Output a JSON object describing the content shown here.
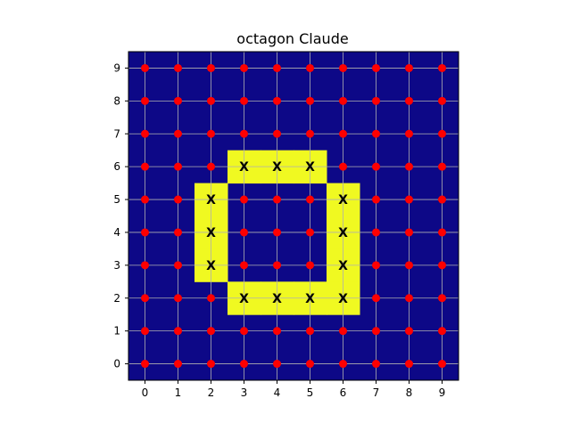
{
  "chart_data": {
    "type": "heatmap",
    "title": "octagon Claude",
    "xlabel": "",
    "ylabel": "",
    "x_ticks": [
      0,
      1,
      2,
      3,
      4,
      5,
      6,
      7,
      8,
      9
    ],
    "y_ticks": [
      0,
      1,
      2,
      3,
      4,
      5,
      6,
      7,
      8,
      9
    ],
    "xlim": [
      -0.5,
      9.5
    ],
    "ylim": [
      -0.5,
      9.5
    ],
    "grid": true,
    "colors": {
      "background_cell": "#0d0887",
      "highlight_cell": "#f0f921",
      "dot": "#ff0000",
      "x_marker": "#000000",
      "grid": "#b0b0b0"
    },
    "highlighted_cells": [
      [
        3,
        6
      ],
      [
        4,
        6
      ],
      [
        5,
        6
      ],
      [
        2,
        5
      ],
      [
        6,
        5
      ],
      [
        2,
        4
      ],
      [
        6,
        4
      ],
      [
        2,
        3
      ],
      [
        6,
        3
      ],
      [
        3,
        2
      ],
      [
        4,
        2
      ],
      [
        5,
        2
      ],
      [
        6,
        2
      ]
    ],
    "marker_label": "X"
  }
}
